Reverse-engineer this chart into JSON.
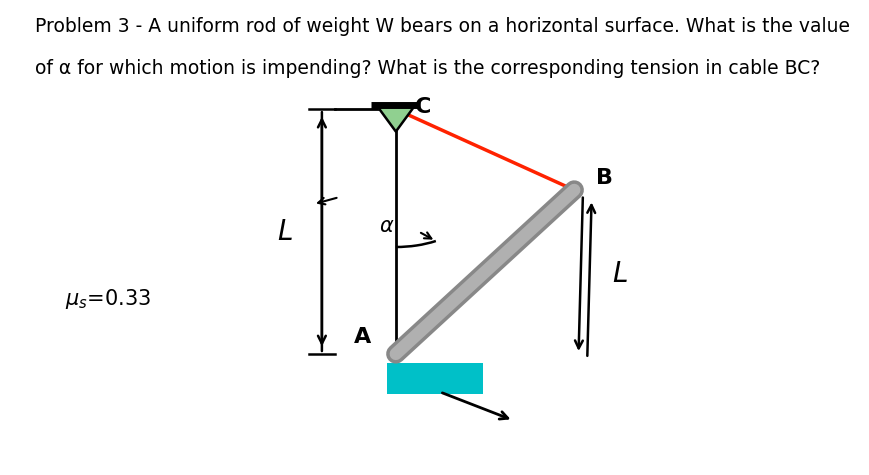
{
  "title_line1": "Problem 3 - A uniform rod of weight W bears on a horizontal surface. What is the value",
  "title_line2": "of α for which motion is impending? What is the corresponding tension in cable BC?",
  "bg_color": "#ffffff",
  "text_color": "#000000",
  "rod_color_outer": "#888888",
  "rod_color_inner": "#b0b0b0",
  "cable_color": "#ff2200",
  "surface_color": "#00c0c8",
  "C": [
    0.455,
    0.77
  ],
  "A": [
    0.455,
    0.255
  ],
  "B": [
    0.66,
    0.6
  ],
  "font_size_title": 13.5
}
